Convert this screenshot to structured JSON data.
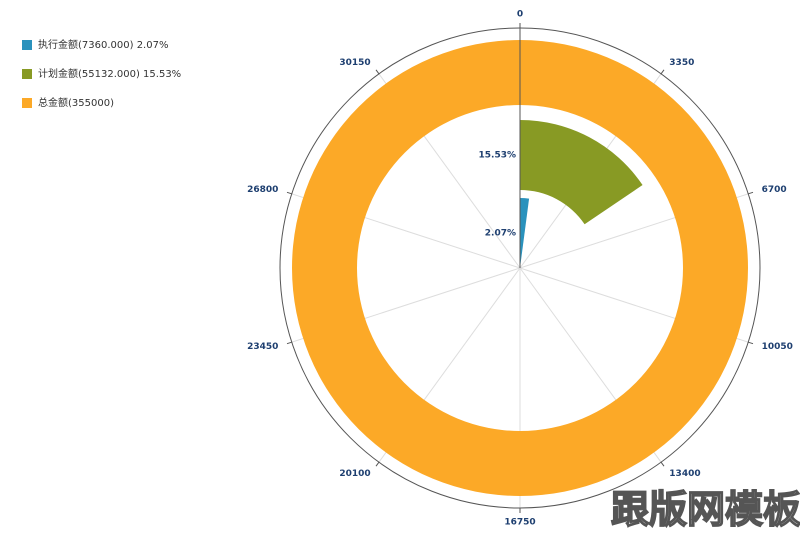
{
  "chart_data": {
    "type": "polar-bar",
    "series": [
      {
        "name": "执行金额(7360.000) 2.07%",
        "color": "#2a92bd",
        "values": [
          693.45
        ],
        "value_labels": [
          "2.07%"
        ]
      },
      {
        "name": "计划金额(55132.000) 15.53%",
        "color": "#889a24",
        "values": [
          5202.55
        ],
        "value_labels": [
          "15.53%"
        ]
      },
      {
        "name": "总金额(355000)",
        "color": "#fca927",
        "values": [
          33500
        ]
      }
    ],
    "thetalim": [
      0,
      33500
    ],
    "thetaticks": [
      0,
      3350,
      6700,
      10050,
      13400,
      16750,
      20100,
      23450,
      26800,
      30150
    ],
    "grid": true,
    "legend": "top-left",
    "watermark": "跟版网模板"
  }
}
